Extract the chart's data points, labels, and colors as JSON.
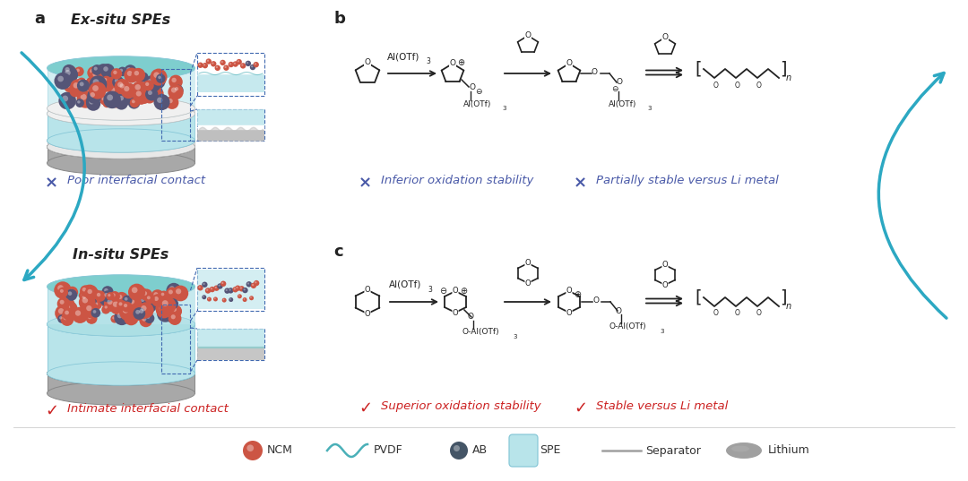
{
  "bg_color": "#ffffff",
  "title_a": "Ex-situ SPEs",
  "title_insitu": "In-situ SPEs",
  "label_a": "a",
  "label_b": "b",
  "label_c": "c",
  "cross_color": "#4a5aa8",
  "check_color": "#cc2222",
  "cross_text_exsitu": "Poor interfacial contact",
  "check_text_insitu": "Intimate interfacial contact",
  "cross_text_b1": "Inferior oxidation stability",
  "cross_text_b2": "Partially stable versus Li metal",
  "check_text_c1": "Superior oxidation stability",
  "check_text_c2": "Stable versus Li metal",
  "arrow_color": "#2ca8c2",
  "dashed_color": "#4169b0",
  "chemical_color": "#222222",
  "teal_light": "#b8e4ea",
  "teal_mid": "#7ecece",
  "teal_dark": "#4ab0b8",
  "ncm_color_main": "#cc5544",
  "ncm_color_dark": "#555577",
  "ab_color": "#445566",
  "sep_color": "#d8d8d8",
  "lithium_color": "#a0a0a0",
  "lithium_dark": "#707070",
  "spe_color": "#b8e4ea",
  "spe_edge": "#88c8d8"
}
